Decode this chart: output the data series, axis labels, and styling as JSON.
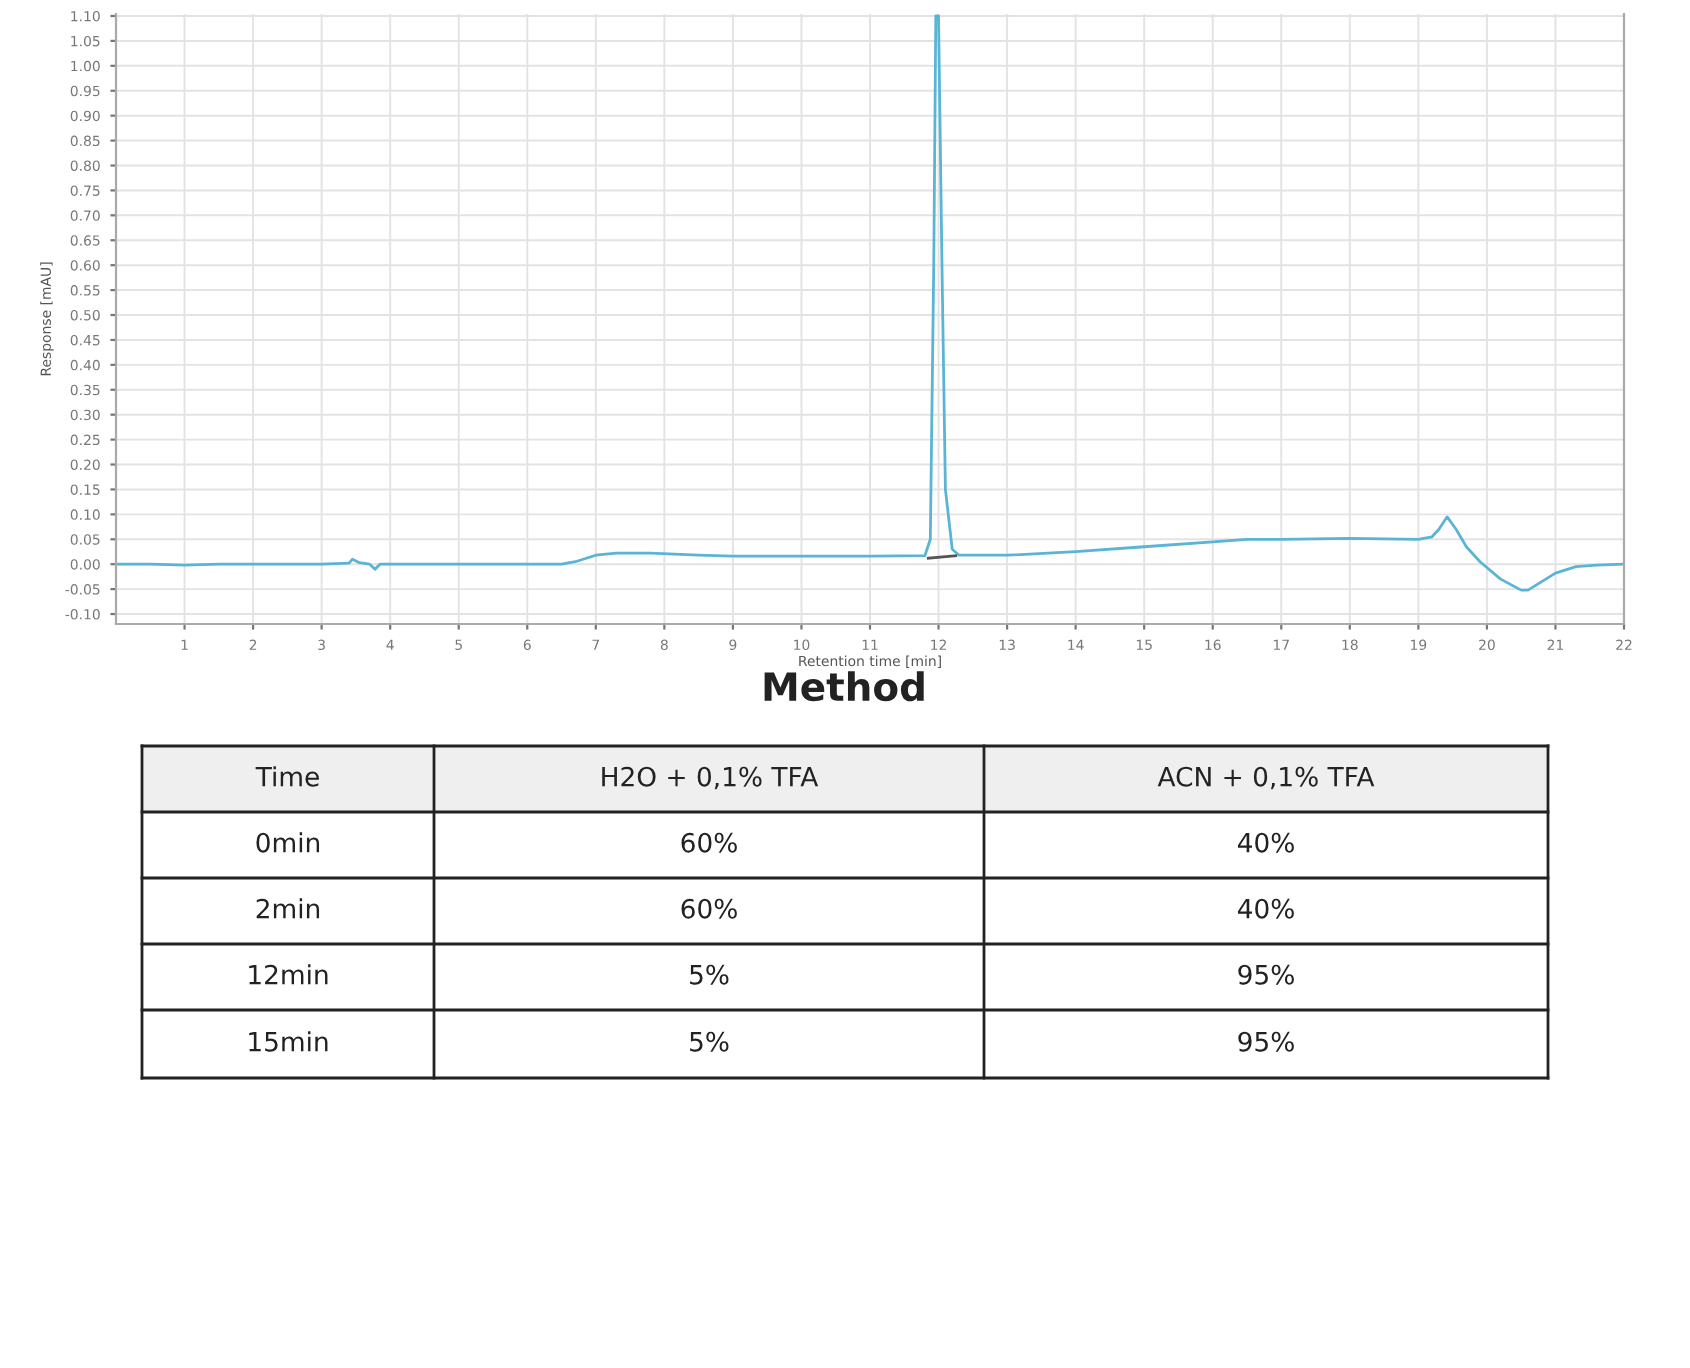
{
  "chart_data": [
    {
      "type": "line",
      "xlabel": "Retention time [min]",
      "ylabel": "Response [mAU]",
      "series": [
        {
          "color": "#5ab4d6",
          "x": [
            0,
            0.5,
            1,
            1.5,
            3,
            3.4,
            3.45,
            3.55,
            3.7,
            3.78,
            3.85,
            4,
            6.5,
            6.7,
            7,
            7.3,
            7.8,
            8.5,
            9,
            10,
            11,
            11.8,
            11.88,
            11.93,
            11.96,
            12.0,
            12.05,
            12.1,
            12.2,
            12.3,
            13,
            14,
            15,
            16,
            16.5,
            17,
            18,
            19,
            19.2,
            19.3,
            19.42,
            19.55,
            19.7,
            19.9,
            20.2,
            20.5,
            20.6,
            20.8,
            21,
            21.3,
            21.6,
            22
          ],
          "values": [
            0.0,
            0.0,
            -0.002,
            0.0,
            0.0,
            0.002,
            0.01,
            0.003,
            0.0,
            -0.01,
            0.0,
            0.0,
            0.0,
            0.005,
            0.018,
            0.022,
            0.022,
            0.018,
            0.016,
            0.016,
            0.016,
            0.017,
            0.05,
            0.6,
            1.1,
            1.1,
            0.6,
            0.15,
            0.03,
            0.018,
            0.018,
            0.025,
            0.035,
            0.045,
            0.05,
            0.05,
            0.052,
            0.05,
            0.055,
            0.07,
            0.095,
            0.07,
            0.035,
            0.005,
            -0.03,
            -0.052,
            -0.052,
            -0.035,
            -0.018,
            -0.005,
            -0.002,
            0.0
          ]
        },
        {
          "color": "#555555",
          "x": [
            11.85,
            12.25
          ],
          "values": [
            0.012,
            0.017
          ]
        }
      ],
      "xlim": [
        0,
        22
      ],
      "xticks": [
        1,
        2,
        3,
        4,
        5,
        6,
        7,
        8,
        9,
        10,
        11,
        12,
        13,
        14,
        15,
        16,
        17,
        18,
        19,
        20,
        21,
        22
      ],
      "ylim": [
        -0.12,
        1.104
      ],
      "yticks": [
        {
          "value": -0.1,
          "label": "-0.10"
        },
        {
          "value": -0.05,
          "label": "-0.05"
        },
        {
          "value": 0,
          "label": "0.00"
        },
        {
          "value": 0.05,
          "label": "0.05"
        },
        {
          "value": 0.1,
          "label": "0.10"
        },
        {
          "value": 0.15,
          "label": "0.15"
        },
        {
          "value": 0.2,
          "label": "0.20"
        },
        {
          "value": 0.25,
          "label": "0.25"
        },
        {
          "value": 0.3,
          "label": "0.30"
        },
        {
          "value": 0.35,
          "label": "0.35"
        },
        {
          "value": 0.4,
          "label": "0.40"
        },
        {
          "value": 0.45,
          "label": "0.45"
        },
        {
          "value": 0.5,
          "label": "0.50"
        },
        {
          "value": 0.55,
          "label": "0.55"
        },
        {
          "value": 0.6,
          "label": "0.60"
        },
        {
          "value": 0.65,
          "label": "0.65"
        },
        {
          "value": 0.7,
          "label": "0.70"
        },
        {
          "value": 0.75,
          "label": "0.75"
        },
        {
          "value": 0.8,
          "label": "0.80"
        },
        {
          "value": 0.85,
          "label": "0.85"
        },
        {
          "value": 0.9,
          "label": "0.90"
        },
        {
          "value": 0.95,
          "label": "0.95"
        },
        {
          "value": 1.0,
          "label": "1.00"
        },
        {
          "value": 1.05,
          "label": "1.05"
        },
        {
          "value": 1.1,
          "label": "1.10"
        }
      ],
      "grid": true
    },
    {
      "type": "other",
      "title": "Method",
      "categories": [
        "Time",
        "H2O + 0,1% TFA",
        "ACN + 0,1% TFA"
      ],
      "y_categories": [
        "0min",
        "2min",
        "12min",
        "15min"
      ],
      "cell_labels": [
        [
          "60%",
          "40%"
        ],
        [
          "60%",
          "40%"
        ],
        [
          "5%",
          "95%"
        ],
        [
          "5%",
          "95%"
        ]
      ]
    }
  ]
}
